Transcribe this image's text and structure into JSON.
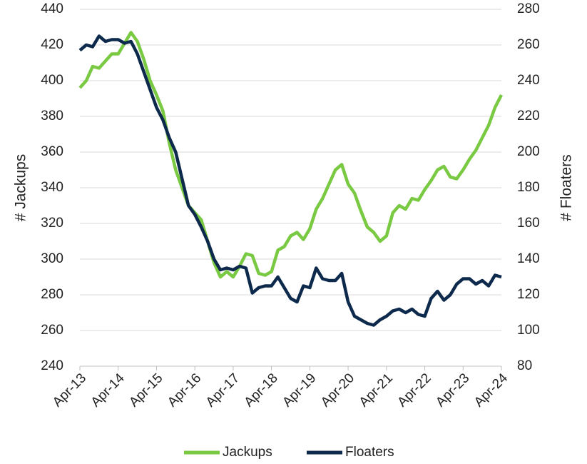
{
  "chart_data": {
    "type": "line",
    "y_label": "# Jackups",
    "y2_label": "# Floaters",
    "categories": [
      "Apr-13",
      null,
      null,
      null,
      null,
      null,
      "Apr-14",
      null,
      null,
      null,
      null,
      null,
      "Apr-15",
      null,
      null,
      null,
      null,
      null,
      "Apr-16",
      null,
      null,
      null,
      null,
      null,
      "Apr-17",
      null,
      null,
      null,
      null,
      null,
      "Apr-18",
      null,
      null,
      null,
      null,
      null,
      "Apr-19",
      null,
      null,
      null,
      null,
      null,
      "Apr-20",
      null,
      null,
      null,
      null,
      null,
      "Apr-21",
      null,
      null,
      null,
      null,
      null,
      "Apr-22",
      null,
      null,
      null,
      null,
      null,
      "Apr-23",
      null,
      null,
      null,
      null,
      null,
      "Apr-24"
    ],
    "series": [
      {
        "name": "Jackups",
        "color": "#7ac943",
        "axis": "y",
        "values": [
          396,
          400,
          408,
          407,
          411,
          415,
          415,
          421,
          427,
          422,
          412,
          400,
          392,
          383,
          365,
          350,
          340,
          330,
          326,
          322,
          310,
          298,
          290,
          293,
          290,
          296,
          303,
          302,
          292,
          291,
          293,
          305,
          307,
          313,
          315,
          311,
          317,
          328,
          334,
          342,
          350,
          353,
          342,
          337,
          327,
          318,
          315,
          310,
          313,
          326,
          330,
          328,
          334,
          333,
          339,
          344,
          350,
          352,
          346,
          345,
          350,
          356,
          361,
          368,
          375,
          385,
          392
        ]
      },
      {
        "name": "Floaters",
        "color": "#0d2a4c",
        "axis": "y2",
        "values": [
          257,
          260,
          259,
          265,
          262,
          263,
          263,
          261,
          262,
          255,
          245,
          235,
          225,
          218,
          208,
          200,
          185,
          170,
          165,
          158,
          150,
          140,
          134,
          135,
          134,
          136,
          135,
          121,
          124,
          125,
          125,
          130,
          124,
          118,
          116,
          125,
          124,
          135,
          129,
          128,
          128,
          132,
          116,
          108,
          106,
          104,
          103,
          106,
          108,
          111,
          112,
          110,
          112,
          109,
          108,
          118,
          122,
          117,
          120,
          126,
          129,
          129,
          126,
          128,
          125,
          131,
          130
        ]
      }
    ],
    "ylim": [
      240,
      440
    ],
    "yticks": [
      240,
      260,
      280,
      300,
      320,
      340,
      360,
      380,
      400,
      420,
      440
    ],
    "y2lim": [
      80,
      280
    ],
    "y2ticks": [
      80,
      100,
      120,
      140,
      160,
      180,
      200,
      220,
      240,
      260,
      280
    ],
    "grid": true,
    "legend": "bottom"
  }
}
